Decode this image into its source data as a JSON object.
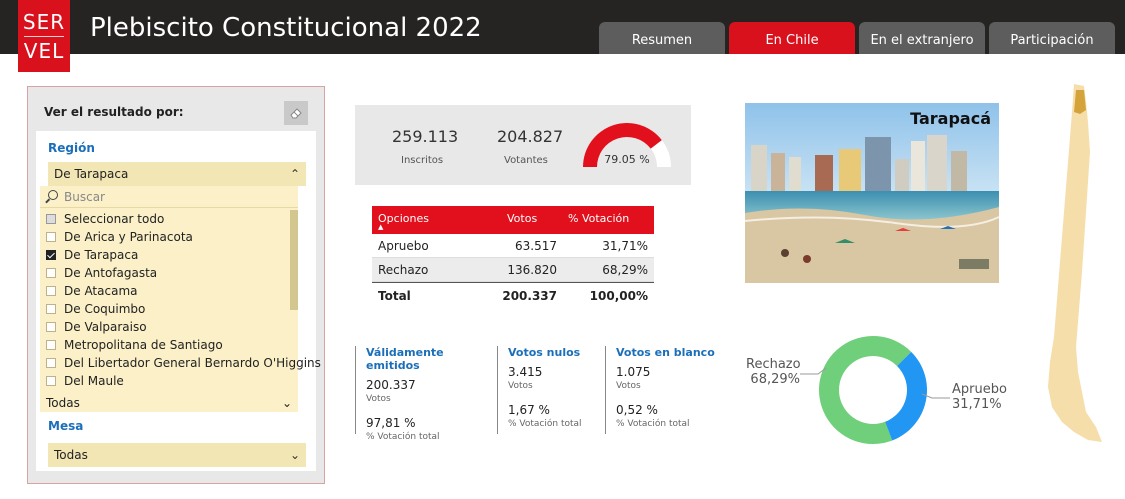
{
  "header": {
    "logo_top": "SER",
    "logo_bottom": "VEL",
    "title": "Plebiscito Constitucional 2022",
    "tabs": [
      {
        "label": "Resumen"
      },
      {
        "label": "En Chile",
        "active": true
      },
      {
        "label": "En el extranjero"
      },
      {
        "label": "Participación"
      }
    ]
  },
  "filters": {
    "title": "Ver el resultado por:",
    "region_label": "Región",
    "region_value": "De Tarapaca",
    "search_placeholder": "Buscar",
    "items": [
      {
        "label": "Seleccionar todo",
        "state": "partial"
      },
      {
        "label": "De Arica y Parinacota",
        "state": "off"
      },
      {
        "label": "De Tarapaca",
        "state": "on"
      },
      {
        "label": "De Antofagasta",
        "state": "off"
      },
      {
        "label": "De Atacama",
        "state": "off"
      },
      {
        "label": "De Coquimbo",
        "state": "off"
      },
      {
        "label": "De Valparaiso",
        "state": "off"
      },
      {
        "label": "Metropolitana de Santiago",
        "state": "off"
      },
      {
        "label": "Del Libertador General Bernardo O'Higgins",
        "state": "off"
      },
      {
        "label": "Del Maule",
        "state": "off"
      }
    ],
    "comuna_value": "Todas",
    "mesa_label": "Mesa",
    "mesa_value": "Todas"
  },
  "kpi": {
    "inscritos_value": "259.113",
    "inscritos_label": "Inscritos",
    "votantes_value": "204.827",
    "votantes_label": "Votantes",
    "participacion": "79.05 %",
    "participacion_fraction": 0.7905
  },
  "results": {
    "headers": [
      "Opciones",
      "Votos",
      "% Votación"
    ],
    "rows": [
      {
        "option": "Apruebo",
        "votes": "63.517",
        "pct": "31,71%"
      },
      {
        "option": "Rechazo",
        "votes": "136.820",
        "pct": "68,29%"
      }
    ],
    "total": {
      "option": "Total",
      "votes": "200.337",
      "pct": "100,00%"
    }
  },
  "stats": [
    {
      "title": "Válidamente emitidos",
      "value": "200.337",
      "unit": "Votos",
      "pct": "97,81 %",
      "pct_label": "% Votación total"
    },
    {
      "title": "Votos nulos",
      "value": "3.415",
      "unit": "Votos",
      "pct": "1,67 %",
      "pct_label": "% Votación total"
    },
    {
      "title": "Votos en blanco",
      "value": "1.075",
      "unit": "Votos",
      "pct": "0,52 %",
      "pct_label": "% Votación total"
    }
  ],
  "photo": {
    "label": "Tarapacá"
  },
  "donut": {
    "rechazo_label": "Rechazo",
    "rechazo_pct": "68,29%",
    "apruebo_label": "Apruebo",
    "apruebo_pct": "31,71%",
    "rechazo_value": 68.29,
    "apruebo_value": 31.71,
    "rechazo_color": "#6fcf7a",
    "apruebo_color": "#2196f3"
  },
  "colors": {
    "accent_red": "#d9111d",
    "header_bg": "#252423",
    "slicer_yellow": "#f3e6b5",
    "link_blue": "#1b6fb9",
    "map_fill": "#f6deaa",
    "map_highlight": "#d4a33b"
  }
}
